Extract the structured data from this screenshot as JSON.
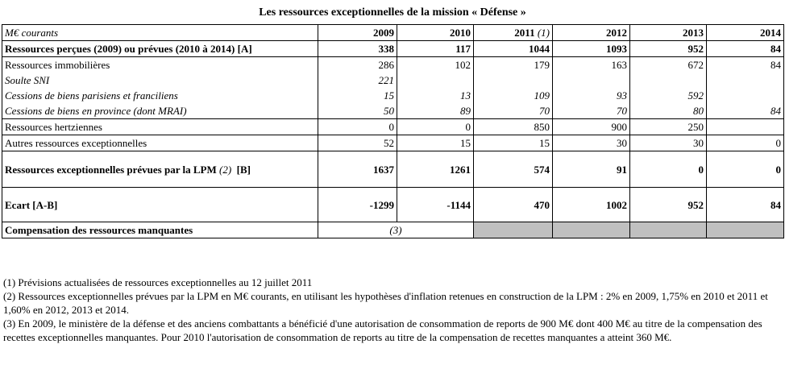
{
  "title": "Les ressources exceptionnelles de la mission « Défense »",
  "header": {
    "unit": "M€ courants",
    "years": [
      "2009",
      "2010",
      "2011",
      "2012",
      "2013",
      "2014"
    ],
    "year_2011_note": "(1)"
  },
  "rows": {
    "perceived": {
      "label": "Ressources perçues (2009) ou prévues (2010 à 2014) [A]",
      "values": [
        "338",
        "117",
        "1044",
        "1093",
        "952",
        "84"
      ]
    },
    "immo": {
      "label": "Ressources immobilières",
      "values": [
        "286",
        "102",
        "179",
        "163",
        "672",
        "84"
      ]
    },
    "soulte": {
      "label": "Soulte SNI",
      "values": [
        "221",
        "",
        "",
        "",
        "",
        ""
      ]
    },
    "paris": {
      "label": "Cessions de biens parisiens et franciliens",
      "values": [
        "15",
        "13",
        "109",
        "93",
        "592",
        ""
      ]
    },
    "province": {
      "label": "Cessions de biens en province (dont MRAI)",
      "values": [
        "50",
        "89",
        "70",
        "70",
        "80",
        "84"
      ]
    },
    "hertz": {
      "label": "Ressources hertziennes",
      "values": [
        "0",
        "0",
        "850",
        "900",
        "250",
        ""
      ]
    },
    "autres": {
      "label": "Autres ressources exceptionnelles",
      "values": [
        "52",
        "15",
        "15",
        "30",
        "30",
        "0"
      ]
    },
    "lpm": {
      "label_main": "Ressources exceptionnelles prévues par la LPM ",
      "label_note": "(2)",
      "label_end": "  [B]",
      "values": [
        "1637",
        "1261",
        "574",
        "91",
        "0",
        "0"
      ]
    },
    "ecart": {
      "label": "Ecart [A-B]",
      "values": [
        "-1299",
        "-1144",
        "470",
        "1002",
        "952",
        "84"
      ]
    },
    "compensation": {
      "label": "Compensation des ressources manquantes",
      "note": "(3)"
    }
  },
  "notes": [
    "(1) Prévisions actualisées de ressources exceptionnelles au 12 juillet 2011",
    "(2) Ressources exceptionnelles prévues par la LPM en M€ courants, en utilisant les hypothèses d'inflation retenues en construction de la LPM : 2% en 2009, 1,75% en 2010 et 2011 et 1,60% en 2012, 2013 et 2014.",
    "(3) En 2009, le ministère de la défense et des anciens combattants a bénéficié d'une autorisation de consommation de reports de 900 M€ dont 400 M€ au titre de la compensation des recettes exceptionnelles manquantes. Pour 2010 l'autorisation de consommation de reports au titre de la compensation de recettes manquantes a atteint 360 M€."
  ]
}
